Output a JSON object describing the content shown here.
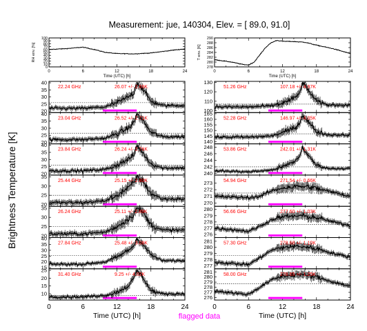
{
  "title": "Measurement: jue, 140304, Elev. = [ 89.0,  91.0]",
  "ylabel_main": "Brightness Temperature [K]",
  "flag_legend": "flagged data",
  "colors": {
    "trace": "#000000",
    "channel_text": "#ff0000",
    "flag": "#ff00ff",
    "frame": "#000000"
  },
  "chart_data": {
    "type": "line",
    "x_range": [
      0,
      24
    ],
    "x_ticks": [
      0,
      6,
      12,
      18,
      24
    ],
    "top_panels": [
      {
        "id": "rh",
        "ylabel": "RH env. [%]",
        "xlabel": "Time (UTC) [h]",
        "ylim": [
          0,
          100
        ],
        "yticks": [
          0,
          10,
          20,
          30,
          40,
          50,
          60,
          70,
          80,
          90,
          100
        ],
        "profile": [
          [
            0,
            60
          ],
          [
            3,
            63
          ],
          [
            6,
            68
          ],
          [
            8,
            60
          ],
          [
            10,
            50
          ],
          [
            12,
            46
          ],
          [
            15,
            45
          ],
          [
            18,
            48
          ],
          [
            20,
            53
          ],
          [
            22,
            58
          ],
          [
            24,
            62
          ]
        ],
        "noise": 1.2
      },
      {
        "id": "temp",
        "ylabel": "T env. [K]",
        "xlabel": "Time (UTC) [h]",
        "ylim": [
          278,
          290
        ],
        "yticks": [
          278,
          280,
          282,
          284,
          286,
          288,
          290
        ],
        "profile": [
          [
            0,
            281
          ],
          [
            3,
            280
          ],
          [
            5,
            279
          ],
          [
            6,
            278.8
          ],
          [
            7,
            280
          ],
          [
            8,
            283
          ],
          [
            9,
            286
          ],
          [
            10,
            288
          ],
          [
            11,
            289
          ],
          [
            12,
            288.6
          ],
          [
            14,
            288.5
          ],
          [
            16,
            288.2
          ],
          [
            18,
            287
          ],
          [
            21,
            285.5
          ],
          [
            24,
            283.5
          ]
        ],
        "noise": 0.15
      }
    ],
    "channels": [
      {
        "label": "22.24 GHz",
        "stat": "26.07 +/-  2.69K",
        "col": 0,
        "row": 0,
        "ylim": [
          19,
          41
        ],
        "yticks": [
          20,
          25,
          30,
          35,
          40
        ],
        "dotted": 26,
        "profile": [
          [
            0,
            22
          ],
          [
            6,
            22
          ],
          [
            10,
            23
          ],
          [
            12,
            26
          ],
          [
            14,
            30
          ],
          [
            15,
            33
          ],
          [
            15.5,
            40
          ],
          [
            16.5,
            36
          ],
          [
            18,
            27
          ],
          [
            20,
            24
          ],
          [
            24,
            24
          ]
        ],
        "noise": 1.5
      },
      {
        "label": "23.04 GHz",
        "stat": "26.52 +/-  2.71K",
        "col": 0,
        "row": 1,
        "ylim": [
          19,
          41
        ],
        "yticks": [
          20,
          25,
          30,
          35,
          40
        ],
        "dotted": 26.5,
        "profile": [
          [
            0,
            22
          ],
          [
            6,
            22
          ],
          [
            10,
            23
          ],
          [
            12,
            26
          ],
          [
            14,
            30
          ],
          [
            15,
            34
          ],
          [
            15.5,
            40
          ],
          [
            16.5,
            36
          ],
          [
            18,
            27
          ],
          [
            20,
            24
          ],
          [
            24,
            24
          ]
        ],
        "noise": 1.5
      },
      {
        "label": "23.84 GHz",
        "stat": "26.24 +/-  2.76K",
        "col": 0,
        "row": 2,
        "ylim": [
          19,
          41
        ],
        "yticks": [
          20,
          25,
          30,
          35,
          40
        ],
        "dotted": 26,
        "profile": [
          [
            0,
            22
          ],
          [
            6,
            22
          ],
          [
            10,
            23
          ],
          [
            12,
            26
          ],
          [
            14,
            30
          ],
          [
            15,
            33
          ],
          [
            15.5,
            40
          ],
          [
            16.5,
            35
          ],
          [
            18,
            27
          ],
          [
            20,
            24
          ],
          [
            24,
            24
          ]
        ],
        "noise": 1.5
      },
      {
        "label": "25.44 GHz",
        "stat": "25.15 +/-  2.80K",
        "col": 0,
        "row": 3,
        "ylim": [
          19,
          36
        ],
        "yticks": [
          20,
          25,
          30,
          35
        ],
        "dotted": 25,
        "profile": [
          [
            0,
            21
          ],
          [
            6,
            21
          ],
          [
            10,
            22
          ],
          [
            12,
            25
          ],
          [
            14,
            29
          ],
          [
            15,
            32
          ],
          [
            15.5,
            35
          ],
          [
            16.5,
            33
          ],
          [
            18,
            26
          ],
          [
            20,
            23
          ],
          [
            24,
            23
          ]
        ],
        "noise": 1.4
      },
      {
        "label": "26.24 GHz",
        "stat": "25.11 +/-  2.89K",
        "col": 0,
        "row": 4,
        "ylim": [
          19,
          36
        ],
        "yticks": [
          20,
          25,
          30,
          35
        ],
        "dotted": 25,
        "profile": [
          [
            0,
            21
          ],
          [
            6,
            21
          ],
          [
            10,
            22
          ],
          [
            12,
            25
          ],
          [
            14,
            29
          ],
          [
            15,
            32
          ],
          [
            15.5,
            35
          ],
          [
            16.5,
            33
          ],
          [
            18,
            26
          ],
          [
            20,
            23
          ],
          [
            24,
            23
          ]
        ],
        "noise": 1.4
      },
      {
        "label": "27.84 GHz",
        "stat": "25.48 +/-  3.08K",
        "col": 0,
        "row": 5,
        "ylim": [
          14,
          41
        ],
        "yticks": [
          15,
          20,
          25,
          30,
          35,
          40
        ],
        "dotted": 25.5,
        "profile": [
          [
            0,
            18
          ],
          [
            6,
            18
          ],
          [
            10,
            20
          ],
          [
            12,
            24
          ],
          [
            14,
            30
          ],
          [
            15,
            34
          ],
          [
            15.5,
            40
          ],
          [
            16.5,
            36
          ],
          [
            18,
            26
          ],
          [
            20,
            21
          ],
          [
            24,
            21
          ]
        ],
        "noise": 1.6
      },
      {
        "label": "31.40 GHz",
        "stat": "9.25 +/-  4.02K",
        "col": 0,
        "row": 6,
        "ylim": [
          6,
          26
        ],
        "yticks": [
          10,
          15,
          20,
          25
        ],
        "dotted": 9,
        "profile": [
          [
            0,
            8
          ],
          [
            6,
            8
          ],
          [
            10,
            9
          ],
          [
            12,
            11
          ],
          [
            14,
            15
          ],
          [
            15,
            20
          ],
          [
            15.5,
            25
          ],
          [
            16.5,
            21
          ],
          [
            18,
            12
          ],
          [
            20,
            10
          ],
          [
            24,
            10
          ]
        ],
        "noise": 1.2
      },
      {
        "label": "51.26 GHz",
        "stat": "107.18 +/-  4.97K",
        "col": 1,
        "row": 0,
        "ylim": [
          98,
          131
        ],
        "yticks": [
          100,
          110,
          120,
          130
        ],
        "dotted": 107,
        "profile": [
          [
            0,
            104
          ],
          [
            6,
            104
          ],
          [
            10,
            105
          ],
          [
            12,
            108
          ],
          [
            14,
            113
          ],
          [
            15,
            118
          ],
          [
            15.5,
            130
          ],
          [
            16.5,
            122
          ],
          [
            18,
            110
          ],
          [
            20,
            106
          ],
          [
            24,
            106
          ]
        ],
        "noise": 2.2
      },
      {
        "label": "52.28 GHz",
        "stat": "146.97 +/-  4.05K",
        "col": 1,
        "row": 1,
        "ylim": [
          138,
          166
        ],
        "yticks": [
          140,
          145,
          150,
          155,
          160,
          165
        ],
        "dotted": 147,
        "profile": [
          [
            0,
            144
          ],
          [
            6,
            144
          ],
          [
            10,
            145
          ],
          [
            12,
            148
          ],
          [
            14,
            152
          ],
          [
            15,
            156
          ],
          [
            15.5,
            164
          ],
          [
            16.5,
            158
          ],
          [
            18,
            149
          ],
          [
            20,
            146
          ],
          [
            24,
            146
          ]
        ],
        "noise": 1.8
      },
      {
        "label": "53.86 GHz",
        "stat": "242.01 +/-  1.31K",
        "col": 1,
        "row": 2,
        "ylim": [
          239.5,
          249
        ],
        "yticks": [
          240,
          242,
          244,
          246,
          248
        ],
        "dotted": 242,
        "profile": [
          [
            0,
            240.8
          ],
          [
            6,
            240.5
          ],
          [
            10,
            241
          ],
          [
            12,
            242
          ],
          [
            14,
            243.5
          ],
          [
            15,
            245
          ],
          [
            15.5,
            248
          ],
          [
            16.5,
            245.5
          ],
          [
            18,
            242.5
          ],
          [
            20,
            241.5
          ],
          [
            24,
            241.5
          ]
        ],
        "noise": 0.5
      },
      {
        "label": "54.94 GHz",
        "stat": "271.54 +/-  0.66K",
        "col": 1,
        "row": 3,
        "ylim": [
          269.5,
          274.2
        ],
        "yticks": [
          270,
          271,
          272,
          273
        ],
        "dotted": 271.5,
        "profile": [
          [
            0,
            271
          ],
          [
            3,
            270.9
          ],
          [
            6,
            270.8
          ],
          [
            8,
            271
          ],
          [
            10,
            271.8
          ],
          [
            12,
            272.3
          ],
          [
            15,
            272.5
          ],
          [
            17,
            272.4
          ],
          [
            20,
            271.8
          ],
          [
            24,
            271
          ]
        ],
        "noise": 0.35
      },
      {
        "label": "56.66 GHz",
        "stat": "277.60 +/-  1.03K",
        "col": 1,
        "row": 4,
        "ylim": [
          275.5,
          280.5
        ],
        "yticks": [
          276,
          277,
          278,
          279,
          280
        ],
        "dotted": 277.6,
        "profile": [
          [
            0,
            277
          ],
          [
            4,
            276.7
          ],
          [
            6,
            276.5
          ],
          [
            8,
            277.3
          ],
          [
            10,
            278.3
          ],
          [
            12,
            278.8
          ],
          [
            15,
            279
          ],
          [
            18,
            278.7
          ],
          [
            21,
            278
          ],
          [
            24,
            277.4
          ]
        ],
        "noise": 0.35
      },
      {
        "label": "57.30 GHz",
        "stat": "278.68 +/-  1.10K",
        "col": 1,
        "row": 5,
        "ylim": [
          276.5,
          281.6
        ],
        "yticks": [
          277,
          278,
          279,
          280,
          281
        ],
        "dotted": 278.7,
        "profile": [
          [
            0,
            277.6
          ],
          [
            4,
            277.3
          ],
          [
            6,
            277.2
          ],
          [
            8,
            278.3
          ],
          [
            10,
            279.5
          ],
          [
            12,
            280
          ],
          [
            15,
            280.2
          ],
          [
            18,
            279.8
          ],
          [
            21,
            279
          ],
          [
            24,
            278.4
          ]
        ],
        "noise": 0.35
      },
      {
        "label": "58.00 GHz",
        "stat": "278.65 +/-  1.25K",
        "col": 1,
        "row": 6,
        "ylim": [
          275.5,
          281.6
        ],
        "yticks": [
          276,
          277,
          278,
          279,
          280,
          281
        ],
        "dotted": 278.7,
        "profile": [
          [
            0,
            277.3
          ],
          [
            4,
            276.8
          ],
          [
            6,
            276.6
          ],
          [
            8,
            278
          ],
          [
            10,
            279.4
          ],
          [
            12,
            280.2
          ],
          [
            15,
            280.5
          ],
          [
            18,
            280
          ],
          [
            21,
            279
          ],
          [
            24,
            278.2
          ]
        ],
        "noise": 0.4
      }
    ],
    "flagged_interval": [
      9.5,
      15.5
    ],
    "bottom_xlabel": "Time (UTC) [h]"
  }
}
